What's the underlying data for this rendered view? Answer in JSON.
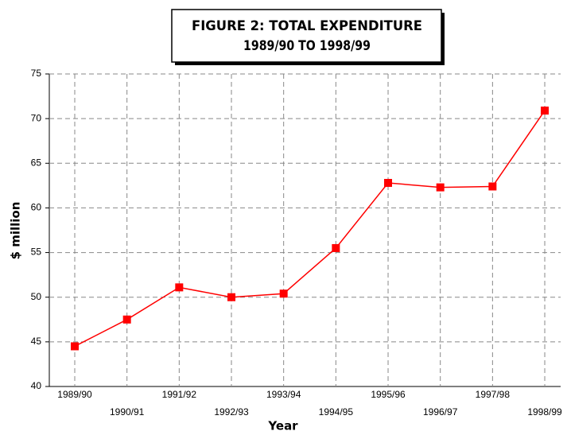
{
  "chart_data": {
    "type": "line",
    "title": "FIGURE 2: TOTAL EXPENDITURE",
    "subtitle": "1989/90 TO 1998/99",
    "x_label": "Year",
    "y_label": "$ million",
    "categories": [
      "1989/90",
      "1990/91",
      "1991/92",
      "1992/93",
      "1993/94",
      "1994/95",
      "1995/96",
      "1996/97",
      "1997/98",
      "1998/99"
    ],
    "series": [
      {
        "name": "Total expenditure",
        "color": "#ff0000",
        "values": [
          44.5,
          47.5,
          51.1,
          50.0,
          50.4,
          55.5,
          62.8,
          62.3,
          62.4,
          70.9
        ]
      }
    ],
    "ylim": [
      40,
      75
    ],
    "yticks": [
      40,
      45,
      50,
      55,
      60,
      65,
      70,
      75
    ],
    "grid": true
  }
}
